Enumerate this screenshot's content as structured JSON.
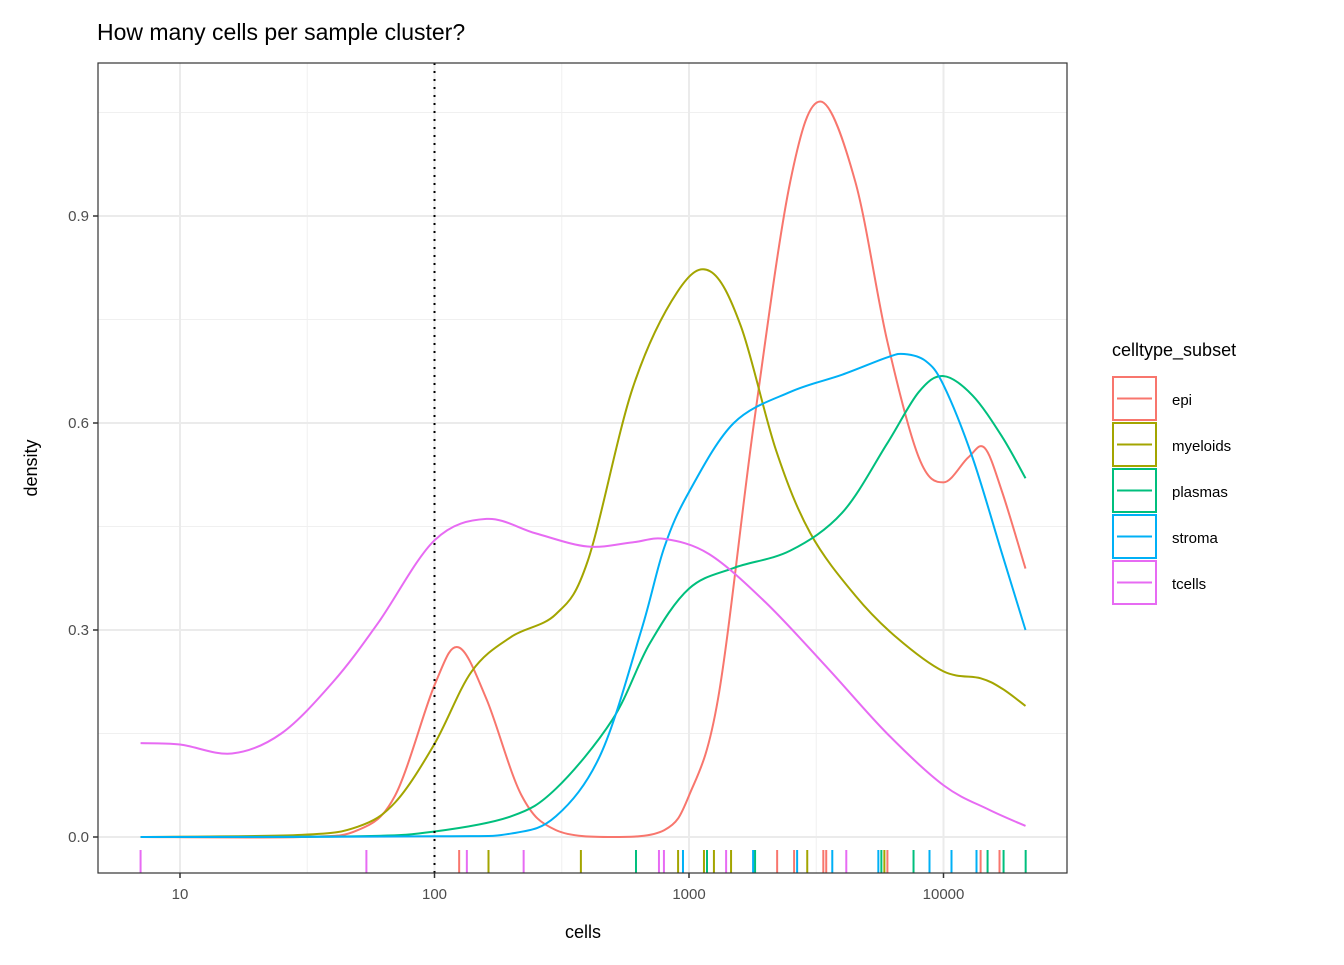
{
  "chart_data": {
    "type": "line",
    "title": "How many cells per sample cluster?",
    "xlabel": "cells",
    "ylabel": "density",
    "xscale": "log10",
    "xlim": [
      5,
      26000
    ],
    "ylim": [
      -0.05,
      1.12
    ],
    "xticks": [
      10,
      100,
      1000,
      10000
    ],
    "xtick_labels": [
      "10",
      "100",
      "1000",
      "10000"
    ],
    "yticks": [
      0.0,
      0.3,
      0.6,
      0.9
    ],
    "ytick_labels": [
      "0.0",
      "0.3",
      "0.6",
      "0.9"
    ],
    "grid": true,
    "vline": {
      "x": 100,
      "style": "dotted",
      "color": "#000000"
    },
    "legend": {
      "title": "celltype_subset",
      "placement": "right"
    },
    "series": [
      {
        "name": "epi",
        "color": "#F8766D",
        "points": [
          [
            7,
            0
          ],
          [
            30,
            0
          ],
          [
            50,
            0.01
          ],
          [
            70,
            0.06
          ],
          [
            100,
            0.22
          ],
          [
            124,
            0.275
          ],
          [
            160,
            0.2
          ],
          [
            220,
            0.06
          ],
          [
            300,
            0.01
          ],
          [
            500,
            0
          ],
          [
            800,
            0.01
          ],
          [
            1000,
            0.06
          ],
          [
            1300,
            0.2
          ],
          [
            1800,
            0.6
          ],
          [
            2500,
            0.95
          ],
          [
            3280,
            1.066
          ],
          [
            4500,
            0.95
          ],
          [
            6000,
            0.72
          ],
          [
            8000,
            0.55
          ],
          [
            10000,
            0.514
          ],
          [
            12500,
            0.55
          ],
          [
            14500,
            0.564
          ],
          [
            17000,
            0.5
          ],
          [
            21000,
            0.389
          ]
        ]
      },
      {
        "name": "myeloids",
        "color": "#A3A500",
        "points": [
          [
            7,
            0
          ],
          [
            30,
            0.003
          ],
          [
            50,
            0.015
          ],
          [
            70,
            0.05
          ],
          [
            100,
            0.135
          ],
          [
            140,
            0.24
          ],
          [
            200,
            0.29
          ],
          [
            300,
            0.323
          ],
          [
            400,
            0.4
          ],
          [
            600,
            0.65
          ],
          [
            900,
            0.79
          ],
          [
            1210,
            0.82
          ],
          [
            1600,
            0.74
          ],
          [
            2200,
            0.56
          ],
          [
            3000,
            0.44
          ],
          [
            4500,
            0.35
          ],
          [
            6500,
            0.29
          ],
          [
            10000,
            0.24
          ],
          [
            14000,
            0.23
          ],
          [
            17000,
            0.215
          ],
          [
            21000,
            0.19
          ]
        ]
      },
      {
        "name": "plasmas",
        "color": "#00BF7D",
        "points": [
          [
            7,
            0
          ],
          [
            50,
            0.001
          ],
          [
            100,
            0.008
          ],
          [
            200,
            0.03
          ],
          [
            300,
            0.07
          ],
          [
            500,
            0.17
          ],
          [
            700,
            0.28
          ],
          [
            1000,
            0.36
          ],
          [
            1500,
            0.39
          ],
          [
            2500,
            0.415
          ],
          [
            4000,
            0.47
          ],
          [
            6000,
            0.57
          ],
          [
            8000,
            0.645
          ],
          [
            10000,
            0.668
          ],
          [
            13000,
            0.64
          ],
          [
            17000,
            0.58
          ],
          [
            21000,
            0.52
          ]
        ]
      },
      {
        "name": "stroma",
        "color": "#00B0F6",
        "points": [
          [
            7,
            0
          ],
          [
            100,
            0.001
          ],
          [
            200,
            0.005
          ],
          [
            300,
            0.03
          ],
          [
            450,
            0.12
          ],
          [
            650,
            0.3
          ],
          [
            800,
            0.42
          ],
          [
            1000,
            0.5
          ],
          [
            1500,
            0.6
          ],
          [
            2500,
            0.645
          ],
          [
            4000,
            0.67
          ],
          [
            6000,
            0.695
          ],
          [
            7000,
            0.7
          ],
          [
            8500,
            0.69
          ],
          [
            10000,
            0.655
          ],
          [
            13000,
            0.55
          ],
          [
            17000,
            0.41
          ],
          [
            21000,
            0.3
          ]
        ]
      },
      {
        "name": "tcells",
        "color": "#E76BF3",
        "points": [
          [
            7,
            0.136
          ],
          [
            10,
            0.134
          ],
          [
            16,
            0.121
          ],
          [
            25,
            0.15
          ],
          [
            40,
            0.225
          ],
          [
            60,
            0.31
          ],
          [
            100,
            0.43
          ],
          [
            160,
            0.461
          ],
          [
            250,
            0.44
          ],
          [
            400,
            0.421
          ],
          [
            600,
            0.427
          ],
          [
            800,
            0.432
          ],
          [
            1200,
            0.41
          ],
          [
            2000,
            0.34
          ],
          [
            3500,
            0.245
          ],
          [
            6000,
            0.15
          ],
          [
            10000,
            0.075
          ],
          [
            15000,
            0.04
          ],
          [
            21000,
            0.016
          ]
        ]
      }
    ],
    "rug": [
      [
        "tcells",
        7
      ],
      [
        "tcells",
        54
      ],
      [
        "epi",
        125
      ],
      [
        "tcells",
        134
      ],
      [
        "myeloids",
        163
      ],
      [
        "tcells",
        224
      ],
      [
        "myeloids",
        376
      ],
      [
        "plasmas",
        619
      ],
      [
        "tcells",
        762
      ],
      [
        "tcells",
        797
      ],
      [
        "myeloids",
        906
      ],
      [
        "stroma",
        947
      ],
      [
        "myeloids",
        1145
      ],
      [
        "plasmas",
        1177
      ],
      [
        "myeloids",
        1253
      ],
      [
        "tcells",
        1399
      ],
      [
        "myeloids",
        1463
      ],
      [
        "stroma",
        1786
      ],
      [
        "plasmas",
        1818
      ],
      [
        "epi",
        2220
      ],
      [
        "epi",
        2588
      ],
      [
        "stroma",
        2660
      ],
      [
        "myeloids",
        2915
      ],
      [
        "epi",
        3371
      ],
      [
        "epi",
        3461
      ],
      [
        "stroma",
        3656
      ],
      [
        "tcells",
        4150
      ],
      [
        "stroma",
        5546
      ],
      [
        "plasmas",
        5700
      ],
      [
        "myeloids",
        5857
      ],
      [
        "epi",
        6020
      ],
      [
        "plasmas",
        7625
      ],
      [
        "stroma",
        8810
      ],
      [
        "stroma",
        10750
      ],
      [
        "stroma",
        13480
      ],
      [
        "epi",
        13990
      ],
      [
        "plasmas",
        14900
      ],
      [
        "epi",
        16600
      ],
      [
        "plasmas",
        17220
      ],
      [
        "plasmas",
        21030
      ]
    ]
  }
}
